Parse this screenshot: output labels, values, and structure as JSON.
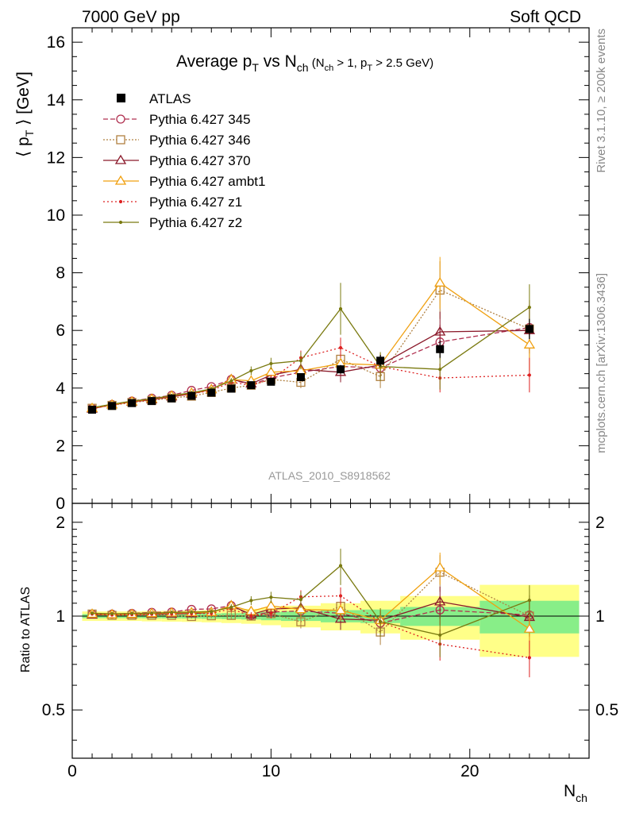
{
  "header": {
    "left": "7000 GeV pp",
    "right": "Soft QCD"
  },
  "side_text": {
    "top": "Rivet 3.1.10, ≥ 200k events",
    "bottom": "mcplots.cern.ch [arXiv:1306.3436]"
  },
  "chart_data": [
    {
      "type": "line",
      "title_parts": {
        "main": "Average p",
        "sub1": "T",
        "mid": " vs N",
        "sub2": "ch",
        "cut": " (N",
        "cut_sub1": "ch",
        "cut_mid": " > 1, p",
        "cut_sub2": "T",
        "cut_end": " > 2.5 GeV)"
      },
      "ylabel_parts": {
        "open": "⟨ p",
        "sub": "T",
        "close": " ⟩ [GeV]"
      },
      "watermark": "ATLAS_2010_S8918562",
      "ylim": [
        0,
        16.5
      ],
      "xlim": [
        0,
        26
      ],
      "yticks": [
        0,
        2,
        4,
        6,
        8,
        10,
        12,
        14,
        16
      ],
      "x": [
        1,
        2,
        3,
        4,
        5,
        6,
        7,
        8,
        9,
        10,
        11.5,
        13.5,
        15.5,
        18.5,
        23
      ],
      "atlas": {
        "name": "ATLAS",
        "y": [
          3.25,
          3.38,
          3.48,
          3.55,
          3.64,
          3.73,
          3.84,
          3.98,
          4.1,
          4.22,
          4.38,
          4.65,
          4.95,
          5.35,
          6.05
        ],
        "yerr": [
          0.04,
          0.04,
          0.04,
          0.04,
          0.05,
          0.06,
          0.06,
          0.07,
          0.08,
          0.09,
          0.11,
          0.15,
          0.2,
          0.3,
          0.35
        ]
      },
      "series": [
        {
          "name": "Pythia 6.427 345",
          "color": "#b03050",
          "dash": "6,3",
          "marker": "circle",
          "y": [
            3.3,
            3.43,
            3.55,
            3.65,
            3.75,
            3.92,
            4.05,
            4.3,
            4.12,
            4.35,
            4.55,
            4.75,
            4.7,
            5.6,
            6.1
          ],
          "yerr": [
            0.03,
            0.03,
            0.03,
            0.04,
            0.05,
            0.06,
            0.07,
            0.1,
            0.12,
            0.15,
            0.2,
            0.3,
            0.35,
            0.6,
            0.8
          ]
        },
        {
          "name": "Pythia 6.427 346",
          "color": "#b08040",
          "dash": "2,2",
          "marker": "square",
          "y": [
            3.3,
            3.4,
            3.5,
            3.57,
            3.66,
            3.72,
            3.85,
            4.0,
            4.1,
            4.3,
            4.2,
            5.0,
            4.4,
            7.4,
            6.05
          ],
          "yerr": [
            0.03,
            0.03,
            0.03,
            0.04,
            0.05,
            0.06,
            0.07,
            0.1,
            0.12,
            0.15,
            0.2,
            0.35,
            0.4,
            1.0,
            1.0
          ]
        },
        {
          "name": "Pythia 6.427 370",
          "color": "#8b1a2b",
          "dash": "",
          "marker": "triangle",
          "y": [
            3.28,
            3.42,
            3.52,
            3.6,
            3.7,
            3.8,
            3.95,
            4.3,
            4.15,
            4.45,
            4.65,
            4.55,
            4.8,
            5.95,
            6.0
          ],
          "yerr": [
            0.03,
            0.03,
            0.03,
            0.04,
            0.05,
            0.06,
            0.07,
            0.1,
            0.12,
            0.15,
            0.25,
            0.35,
            0.4,
            0.7,
            0.8
          ]
        },
        {
          "name": "Pythia 6.427 ambt1",
          "color": "#f0a010",
          "dash": "",
          "marker": "triangle",
          "y": [
            3.3,
            3.42,
            3.53,
            3.62,
            3.73,
            3.83,
            3.95,
            4.3,
            4.25,
            4.55,
            4.6,
            4.85,
            4.8,
            7.65,
            5.5
          ],
          "yerr": [
            0.03,
            0.03,
            0.03,
            0.04,
            0.05,
            0.06,
            0.07,
            0.1,
            0.12,
            0.15,
            0.25,
            0.35,
            0.4,
            0.9,
            0.9
          ]
        },
        {
          "name": "Pythia 6.427 z1",
          "color": "#dd2222",
          "dash": "2,3",
          "marker": "dot",
          "y": [
            3.3,
            3.41,
            3.52,
            3.6,
            3.7,
            3.8,
            3.92,
            4.2,
            4.1,
            4.3,
            5.05,
            5.4,
            4.75,
            4.35,
            4.45
          ],
          "yerr": [
            0.03,
            0.03,
            0.03,
            0.04,
            0.05,
            0.06,
            0.07,
            0.1,
            0.12,
            0.15,
            0.25,
            0.35,
            0.4,
            0.5,
            0.6
          ]
        },
        {
          "name": "Pythia 6.427 z2",
          "color": "#7a7a10",
          "dash": "",
          "marker": "dot",
          "y": [
            3.32,
            3.44,
            3.55,
            3.63,
            3.74,
            3.84,
            3.97,
            4.25,
            4.6,
            4.85,
            4.95,
            6.75,
            4.75,
            4.65,
            6.8
          ],
          "yerr": [
            0.03,
            0.03,
            0.03,
            0.04,
            0.05,
            0.06,
            0.07,
            0.1,
            0.15,
            0.2,
            0.3,
            0.9,
            0.5,
            0.7,
            0.8
          ]
        }
      ]
    },
    {
      "type": "line",
      "ylabel": "Ratio to ATLAS",
      "xlabel_parts": {
        "main": "N",
        "sub": "ch"
      },
      "ylim": [
        0.35,
        2.3
      ],
      "xlim": [
        0,
        26
      ],
      "yticks": [
        0.5,
        1,
        2
      ],
      "xticks": [
        0,
        10,
        20
      ],
      "bands": [
        {
          "x": [
            0.5,
            1.5,
            2.5,
            3.5,
            4.5,
            5.5,
            6.5,
            7.5,
            8.5,
            9.5,
            10.5,
            12.5,
            14.5,
            16.5,
            20.5,
            25.5
          ],
          "green": [
            0.015,
            0.015,
            0.015,
            0.016,
            0.017,
            0.018,
            0.02,
            0.022,
            0.025,
            0.03,
            0.035,
            0.045,
            0.05,
            0.07,
            0.12
          ],
          "yellow": [
            0.035,
            0.035,
            0.035,
            0.038,
            0.04,
            0.042,
            0.045,
            0.05,
            0.055,
            0.065,
            0.08,
            0.1,
            0.12,
            0.16,
            0.26
          ]
        }
      ]
    }
  ]
}
